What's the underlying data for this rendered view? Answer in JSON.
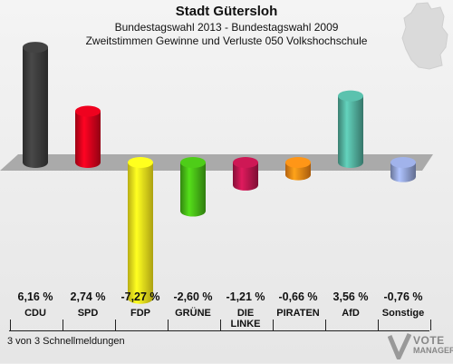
{
  "title": "Stadt Gütersloh",
  "subtitle1": "Bundestagswahl 2013 - Bundestagswahl 2009",
  "subtitle2": "Zweitstimmen Gewinne und Verluste 050 Volkshochschule",
  "footer": "3 von 3 Schnellmeldungen",
  "logo": {
    "line1": "VOTE",
    "line2": "MANAGER"
  },
  "colors": {
    "CDU": "#3a3a3a",
    "SPD": "#d0021b",
    "FDP": "#f5e61a",
    "GRUENE": "#44b215",
    "LINKE": "#b3154a",
    "PIRATEN": "#f08214",
    "AfD": "#4fa997",
    "Sonstige": "#8c9ccc"
  },
  "chart_data": {
    "type": "bar",
    "categories": [
      "CDU",
      "SPD",
      "FDP",
      "GRÜNE",
      "DIE LINKE",
      "PIRATEN",
      "AfD",
      "Sonstige"
    ],
    "values": [
      6.16,
      2.74,
      -7.27,
      -2.6,
      -1.21,
      -0.66,
      3.56,
      -0.76
    ],
    "value_labels": [
      "6,16 %",
      "2,74 %",
      "-7,27 %",
      "-2,60 %",
      "-1,21 %",
      "-0,66 %",
      "3,56 %",
      "-0,76 %"
    ],
    "colors": [
      "#3a3a3a",
      "#d0021b",
      "#f5e61a",
      "#44b215",
      "#b3154a",
      "#f08214",
      "#4fa997",
      "#8c9ccc"
    ],
    "title": "Stadt Gütersloh",
    "xlabel": "",
    "ylabel": "",
    "ylim": [
      -7.27,
      6.16
    ]
  }
}
